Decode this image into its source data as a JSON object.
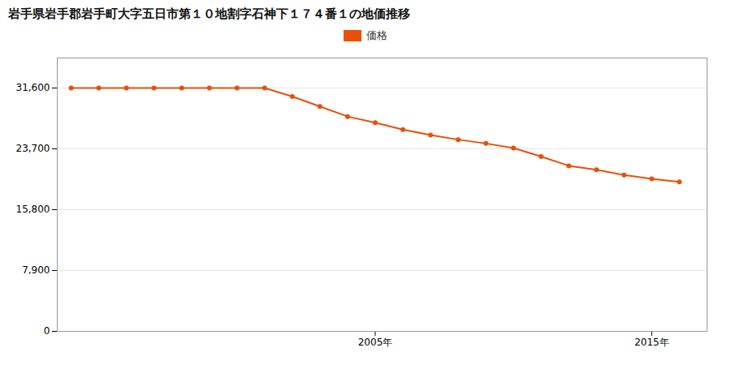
{
  "chart_data": {
    "type": "line",
    "title": "岩手県岩手郡岩手町大字五日市第１０地割字石神下１７４番１の地価推移",
    "x": [
      1994,
      1995,
      1996,
      1997,
      1998,
      1999,
      2000,
      2001,
      2002,
      2003,
      2004,
      2005,
      2006,
      2007,
      2008,
      2009,
      2010,
      2011,
      2012,
      2013,
      2014,
      2015,
      2016
    ],
    "series": [
      {
        "name": "価格",
        "color": "#e8500a",
        "marker": "circle",
        "values": [
          31600,
          31600,
          31600,
          31600,
          31600,
          31600,
          31600,
          31600,
          30500,
          29200,
          27900,
          27100,
          26200,
          25500,
          24900,
          24400,
          23800,
          22700,
          21500,
          21000,
          20300,
          19800,
          19400
        ]
      }
    ],
    "xlim": [
      1993.5,
      2017
    ],
    "xticks": [
      {
        "value": 2005,
        "label": "2005年"
      },
      {
        "value": 2015,
        "label": "2015年"
      }
    ],
    "ylim": [
      0,
      35500
    ],
    "yticks": [
      0,
      {
        "value": 7900,
        "label": "7,900"
      },
      {
        "value": 15800,
        "label": "15,800"
      },
      {
        "value": 23700,
        "label": "23,700"
      },
      {
        "value": 31600,
        "label": "31,600"
      }
    ],
    "grid": "y",
    "legend": "top"
  }
}
